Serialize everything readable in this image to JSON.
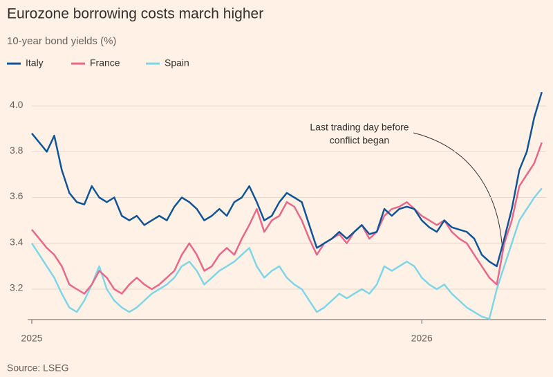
{
  "chart_data": {
    "type": "line",
    "title": "Eurozone borrowing costs march higher",
    "subtitle": "10-year bond yields (%)",
    "source": "Source: LSEG",
    "annotation": [
      "Last trading day before",
      "conflict began"
    ],
    "categories": [
      "2025",
      null,
      null,
      null,
      null,
      null,
      null,
      null,
      null,
      null,
      null,
      null,
      null,
      null,
      null,
      null,
      null,
      null,
      null,
      null,
      null,
      null,
      null,
      null,
      null,
      null,
      null,
      null,
      null,
      null,
      null,
      null,
      null,
      null,
      null,
      null,
      null,
      null,
      null,
      null,
      null,
      null,
      null,
      null,
      null,
      null,
      null,
      null,
      null,
      null,
      null,
      null,
      "2026",
      null,
      null,
      null,
      null,
      null,
      null,
      null,
      null,
      null,
      null,
      null,
      null,
      null,
      null,
      null,
      null
    ],
    "series": [
      {
        "name": "Italy",
        "color": "#0f5499",
        "values": [
          3.88,
          3.84,
          3.8,
          3.87,
          3.72,
          3.62,
          3.58,
          3.57,
          3.65,
          3.6,
          3.58,
          3.6,
          3.52,
          3.5,
          3.52,
          3.48,
          3.5,
          3.52,
          3.5,
          3.56,
          3.6,
          3.58,
          3.55,
          3.5,
          3.52,
          3.55,
          3.52,
          3.58,
          3.6,
          3.65,
          3.58,
          3.5,
          3.52,
          3.58,
          3.62,
          3.6,
          3.58,
          3.48,
          3.38,
          3.4,
          3.42,
          3.45,
          3.42,
          3.45,
          3.48,
          3.44,
          3.45,
          3.55,
          3.52,
          3.55,
          3.56,
          3.55,
          3.5,
          3.47,
          3.45,
          3.5,
          3.47,
          3.46,
          3.45,
          3.42,
          3.35,
          3.32,
          3.3,
          3.42,
          3.55,
          3.72,
          3.8,
          3.95,
          4.06
        ]
      },
      {
        "name": "France",
        "color": "#e8678a",
        "values": [
          3.46,
          3.42,
          3.38,
          3.35,
          3.3,
          3.22,
          3.2,
          3.18,
          3.22,
          3.28,
          3.25,
          3.2,
          3.18,
          3.22,
          3.25,
          3.22,
          3.2,
          3.22,
          3.25,
          3.28,
          3.35,
          3.4,
          3.35,
          3.28,
          3.3,
          3.35,
          3.38,
          3.35,
          3.42,
          3.48,
          3.55,
          3.45,
          3.5,
          3.52,
          3.58,
          3.56,
          3.5,
          3.42,
          3.35,
          3.4,
          3.42,
          3.44,
          3.4,
          3.45,
          3.48,
          3.42,
          3.45,
          3.52,
          3.55,
          3.56,
          3.58,
          3.55,
          3.52,
          3.5,
          3.48,
          3.5,
          3.45,
          3.42,
          3.4,
          3.35,
          3.3,
          3.25,
          3.22,
          3.4,
          3.5,
          3.65,
          3.7,
          3.75,
          3.84
        ]
      },
      {
        "name": "Spain",
        "color": "#7dd6e8",
        "values": [
          3.4,
          3.35,
          3.3,
          3.25,
          3.18,
          3.12,
          3.1,
          3.15,
          3.22,
          3.3,
          3.2,
          3.15,
          3.12,
          3.1,
          3.12,
          3.15,
          3.18,
          3.2,
          3.22,
          3.25,
          3.3,
          3.32,
          3.28,
          3.22,
          3.25,
          3.28,
          3.3,
          3.32,
          3.35,
          3.38,
          3.3,
          3.25,
          3.28,
          3.3,
          3.25,
          3.22,
          3.2,
          3.15,
          3.1,
          3.12,
          3.15,
          3.18,
          3.16,
          3.18,
          3.2,
          3.18,
          3.22,
          3.3,
          3.28,
          3.3,
          3.32,
          3.3,
          3.25,
          3.22,
          3.2,
          3.22,
          3.18,
          3.15,
          3.12,
          3.1,
          3.08,
          3.07,
          3.2,
          3.3,
          3.4,
          3.5,
          3.55,
          3.6,
          3.64
        ]
      }
    ],
    "ylim": [
      3.067,
      4.106
    ],
    "yticks": [
      3.2,
      3.4,
      3.6,
      3.8,
      {
        "value": 4,
        "label": "4.0"
      }
    ],
    "grid": true
  }
}
